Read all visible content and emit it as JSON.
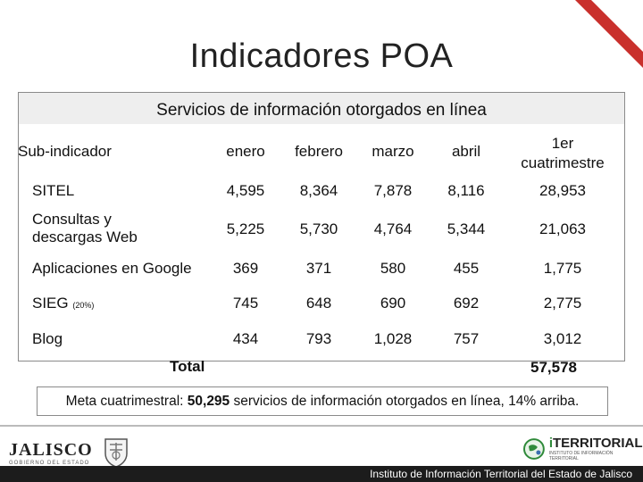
{
  "slide": {
    "title": "Indicadores POA"
  },
  "table": {
    "heading": "Servicios de información otorgados en línea",
    "columns": [
      "Sub-indicador",
      "enero",
      "febrero",
      "marzo",
      "abril",
      "1er cuatrimestre"
    ],
    "rows": [
      {
        "label": "SITEL",
        "note": "",
        "values": [
          "4,595",
          "8,364",
          "7,878",
          "8,116",
          "28,953"
        ]
      },
      {
        "label": "Consultas y descargas Web",
        "note": "",
        "values": [
          "5,225",
          "5,730",
          "4,764",
          "5,344",
          "21,063"
        ]
      },
      {
        "label": "Aplicaciones en Google",
        "note": "",
        "values": [
          "369",
          "371",
          "580",
          "455",
          "1,775"
        ]
      },
      {
        "label": "SIEG",
        "note": "(20%)",
        "values": [
          "745",
          "648",
          "690",
          "692",
          "2,775"
        ]
      },
      {
        "label": "Blog",
        "note": "",
        "values": [
          "434",
          "793",
          "1,028",
          "757",
          "3,012"
        ]
      }
    ],
    "total": {
      "label": "Total",
      "value": "57,578"
    }
  },
  "note": {
    "prefix": "Meta  cuatrimestral: ",
    "highlight": "50,295",
    "suffix": " servicios de información otorgados en línea, 14% arriba."
  },
  "footer": {
    "left_logo_text": "JALISCO",
    "left_logo_sub": "GOBIERNO DEL ESTADO",
    "right_logo_text": "TERRITORIAL",
    "right_logo_prefix": "i",
    "right_logo_sub": "INSTITUTO DE INFORMACIÓN TERRITORIAL",
    "caption": "Instituto de Información Territorial del Estado de Jalisco"
  },
  "colors": {
    "accent_red": "#c9302c",
    "green": "#2f8a3a",
    "footer_bg": "#1c1c1c"
  }
}
